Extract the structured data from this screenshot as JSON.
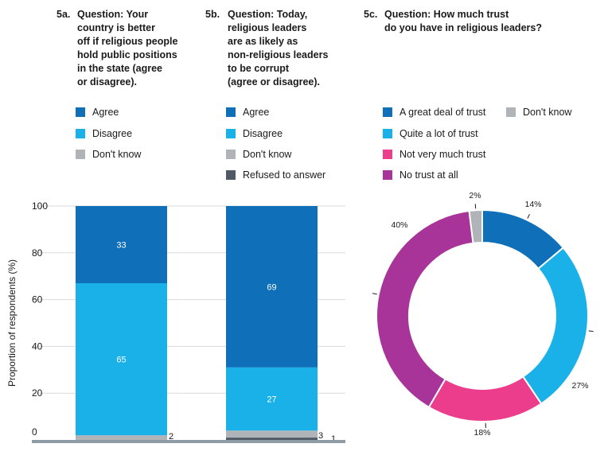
{
  "questions": [
    {
      "num": "5a.",
      "text": "Question:  Your\ncountry is better\noff if religious people\nhold public positions\nin the state (agree\nor disagree)."
    },
    {
      "num": "5b.",
      "text": "Question:  Today,\nreligious leaders\nare as likely as\nnon-religious leaders\nto be corrupt\n(agree or disagree)."
    },
    {
      "num": "5c.",
      "text": "Question:  How much trust\ndo you have in religious leaders?"
    }
  ],
  "legends": {
    "a": [
      {
        "label": "Agree",
        "color": "#0f6fb8"
      },
      {
        "label": "Disagree",
        "color": "#1ab0e8"
      },
      {
        "label": "Don't know",
        "color": "#b0b3b8"
      }
    ],
    "b": [
      {
        "label": "Agree",
        "color": "#0f6fb8"
      },
      {
        "label": "Disagree",
        "color": "#1ab0e8"
      },
      {
        "label": "Don't know",
        "color": "#b0b3b8"
      },
      {
        "label": "Refused to answer",
        "color": "#505a66"
      }
    ],
    "c": [
      {
        "label": "A great deal of trust",
        "color": "#0f6fb8"
      },
      {
        "label": "Quite a lot of trust",
        "color": "#1ab0e8"
      },
      {
        "label": "Not very much trust",
        "color": "#ec3d8c"
      },
      {
        "label": "No trust at all",
        "color": "#a8349a"
      },
      {
        "label": "Don't know",
        "color": "#b0b3b8"
      }
    ]
  },
  "chart_data": [
    {
      "type": "bar",
      "stacked": true,
      "ylabel": "Proportion of respondents (%)",
      "ylim": [
        0,
        100
      ],
      "yticks": [
        0,
        20,
        40,
        60,
        80,
        100
      ],
      "grid": true,
      "categories": [
        "5a",
        "5b"
      ],
      "series": [
        {
          "name": "Refused to answer",
          "color": "#505a66",
          "values": [
            0,
            1
          ],
          "labels": [
            "",
            "1"
          ]
        },
        {
          "name": "Don't know",
          "color": "#b0b3b8",
          "values": [
            2,
            3
          ],
          "labels": [
            "2",
            "3"
          ]
        },
        {
          "name": "Disagree",
          "color": "#1ab0e8",
          "values": [
            65,
            27
          ],
          "labels": [
            "65",
            "27"
          ]
        },
        {
          "name": "Agree",
          "color": "#0f6fb8",
          "values": [
            33,
            69
          ],
          "labels": [
            "33",
            "69"
          ]
        }
      ]
    },
    {
      "type": "pie",
      "donut": true,
      "slices": [
        {
          "name": "A great deal of trust",
          "value": 14,
          "label": "14%",
          "color": "#0f6fb8"
        },
        {
          "name": "Quite a lot of trust",
          "value": 27,
          "label": "27%",
          "color": "#1ab0e8"
        },
        {
          "name": "Not very much trust",
          "value": 18,
          "label": "18%",
          "color": "#ec3d8c"
        },
        {
          "name": "No trust at all",
          "value": 40,
          "label": "40%",
          "color": "#a8349a"
        },
        {
          "name": "Don't know",
          "value": 2,
          "label": "2%",
          "color": "#b0b3b8"
        }
      ]
    }
  ]
}
